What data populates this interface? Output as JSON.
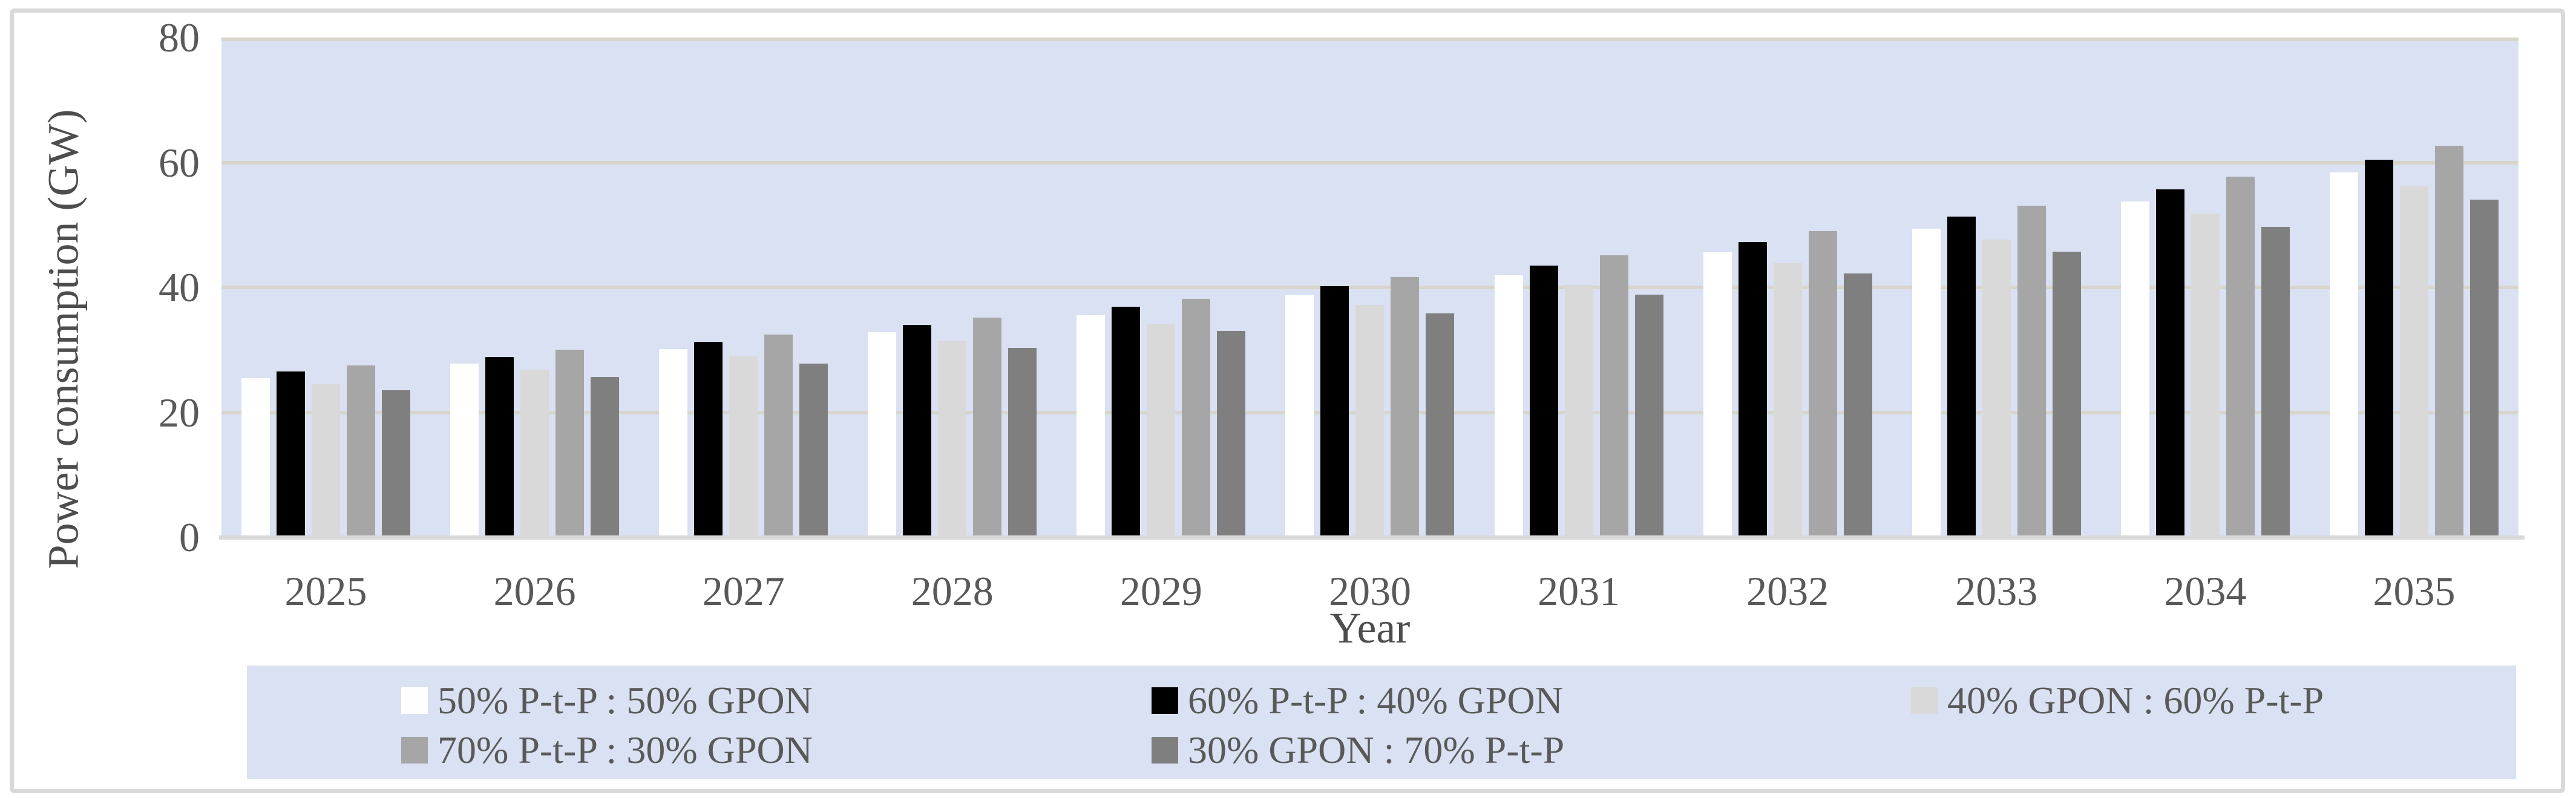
{
  "figure": {
    "border_color": "#d9d9d9",
    "background": "#ffffff"
  },
  "chart_data": {
    "type": "bar",
    "title": "",
    "xlabel": "Year",
    "ylabel": "Power consumption (GW)",
    "ylim": [
      0,
      80
    ],
    "yticks": [
      0,
      20,
      40,
      60,
      80
    ],
    "grid": true,
    "plot_bg": "#d9e1f2",
    "gridline_color": "#d9d5cd",
    "axis_line_color": "#d9d9d9",
    "axis_text_color": "#595959",
    "legend_position": "bottom",
    "legend_bg": "#d9e1f2",
    "categories": [
      "2025",
      "2026",
      "2027",
      "2028",
      "2029",
      "2030",
      "2031",
      "2032",
      "2033",
      "2034",
      "2035"
    ],
    "series": [
      {
        "name": "50% P-t-P : 50% GPON",
        "color": "#ffffff",
        "values": [
          25.5,
          27.8,
          30.1,
          32.8,
          35.5,
          38.7,
          41.9,
          45.6,
          49.4,
          53.8,
          58.4
        ]
      },
      {
        "name": "60% P-t-P : 40% GPON",
        "color": "#000000",
        "values": [
          26.5,
          28.9,
          31.3,
          34.0,
          36.9,
          40.2,
          43.5,
          47.3,
          51.3,
          55.7,
          60.4
        ]
      },
      {
        "name": "40% GPON : 60% P-t-P",
        "color": "#d9d9d9",
        "values": [
          24.5,
          26.8,
          29.0,
          31.5,
          34.1,
          37.2,
          40.4,
          43.9,
          47.7,
          51.8,
          56.2
        ]
      },
      {
        "name": "70% P-t-P : 30% GPON",
        "color": "#a6a6a6",
        "values": [
          27.5,
          30.0,
          32.4,
          35.2,
          38.2,
          41.6,
          45.1,
          49.0,
          53.1,
          57.7,
          62.7
        ]
      },
      {
        "name": "30% GPON : 70% P-t-P",
        "color": "#7f7f7f",
        "values": [
          23.5,
          25.7,
          27.8,
          30.3,
          33.0,
          35.8,
          38.8,
          42.2,
          45.7,
          49.7,
          54.0
        ]
      }
    ]
  }
}
